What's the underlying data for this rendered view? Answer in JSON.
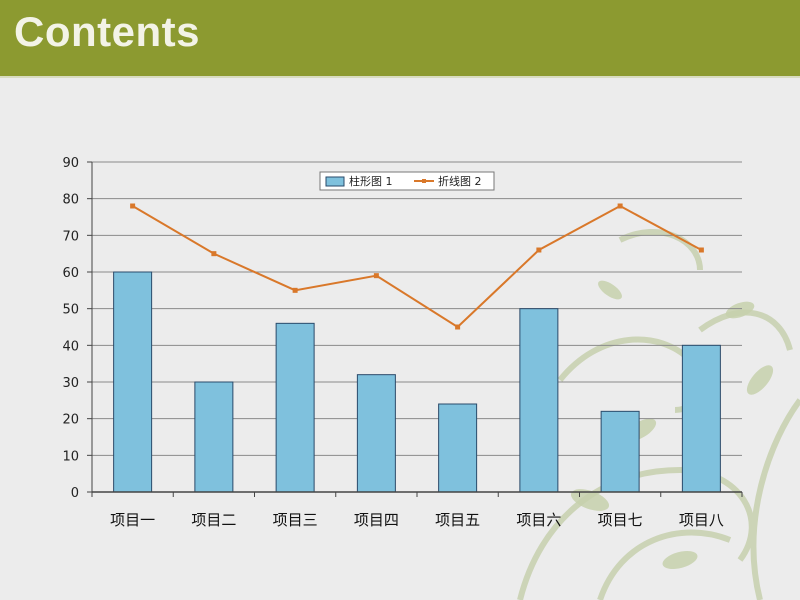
{
  "header": {
    "title": "Contents"
  },
  "colors": {
    "header_bg": "#8c9a30",
    "bar_fill": "#7fc1dd",
    "bar_stroke": "#2a4a6a",
    "line": "#d9782a",
    "grid": "#8a8a8a"
  },
  "chart_data": {
    "type": "bar",
    "categories": [
      "项目一",
      "项目二",
      "项目三",
      "项目四",
      "项目五",
      "项目六",
      "项目七",
      "项目八"
    ],
    "series": [
      {
        "name": "柱形图 1",
        "type": "bar",
        "values": [
          60,
          30,
          46,
          32,
          24,
          50,
          22,
          40
        ]
      },
      {
        "name": "折线图 2",
        "type": "line",
        "values": [
          78,
          65,
          55,
          59,
          45,
          66,
          78,
          66
        ]
      }
    ],
    "yticks": [
      "0",
      "10",
      "20",
      "30",
      "40",
      "50",
      "60",
      "70",
      "80",
      "90"
    ],
    "ylim": [
      0,
      90
    ],
    "grid": true,
    "legend_position": "top-center"
  }
}
